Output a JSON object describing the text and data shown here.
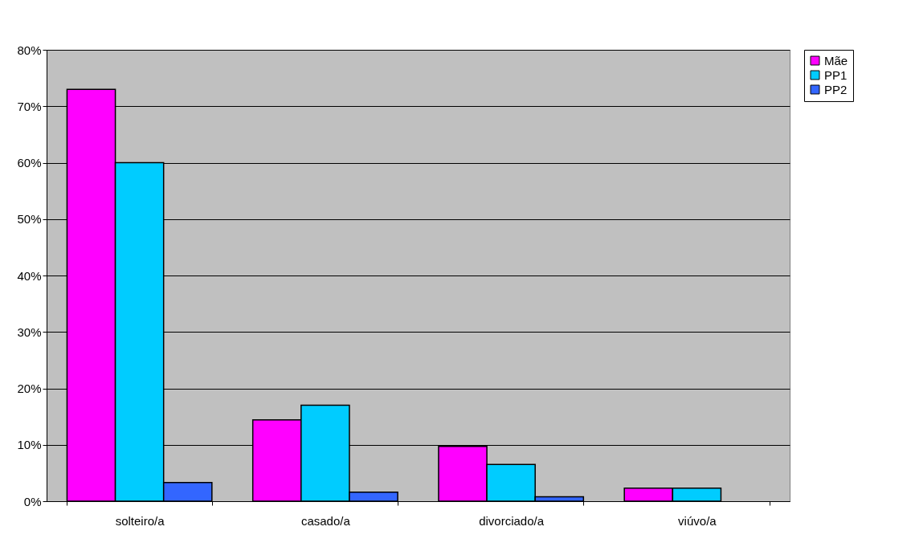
{
  "chart_data": {
    "type": "bar",
    "categories": [
      "solteiro/a",
      "casado/a",
      "divorciado/a",
      "viúvo/a"
    ],
    "series": [
      {
        "name": "Mãe",
        "color": "#ff00ff",
        "values": [
          73,
          14.4,
          9.7,
          2.3
        ]
      },
      {
        "name": "PP1",
        "color": "#00ccff",
        "values": [
          60,
          17,
          6.5,
          2.3
        ]
      },
      {
        "name": "PP2",
        "color": "#3366ff",
        "values": [
          3.3,
          1.6,
          0.8,
          null
        ]
      }
    ],
    "ylim": [
      0,
      80
    ],
    "yticks": [
      {
        "value": 0,
        "label": "0%"
      },
      {
        "value": 10,
        "label": "10%"
      },
      {
        "value": 20,
        "label": "20%"
      },
      {
        "value": 30,
        "label": "30%"
      },
      {
        "value": 40,
        "label": "40%"
      },
      {
        "value": 50,
        "label": "50%"
      },
      {
        "value": 60,
        "label": "60%"
      },
      {
        "value": 70,
        "label": "70%"
      },
      {
        "value": 80,
        "label": "80%"
      }
    ],
    "grid": "y",
    "legend": "right"
  }
}
